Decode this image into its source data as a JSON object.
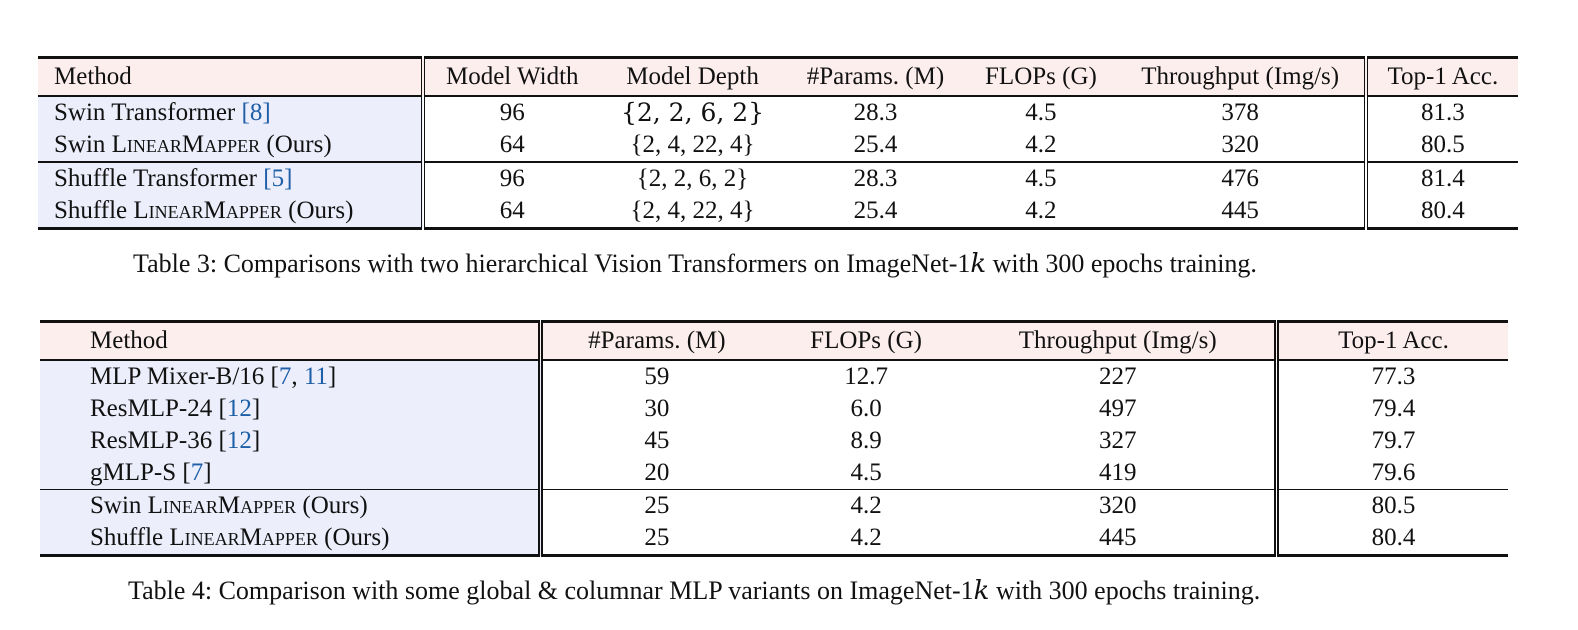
{
  "table3": {
    "headers": [
      "Method",
      "Model Width",
      "Model Depth",
      "#Params. (M)",
      "FLOPs (G)",
      "Throughput (Img/s)",
      "Top-1 Acc."
    ],
    "rows": [
      {
        "name": "Swin Transformer ",
        "ref": "[8]",
        "sc": "",
        "suffix": "",
        "width": "96",
        "depth": "{2, 2, 6, 2}",
        "params": "28.3",
        "flops": "4.5",
        "tput": "378",
        "acc": "81.3"
      },
      {
        "name": "Swin ",
        "ref": "",
        "sc": "LinearMapper",
        "suffix": " (Ours)",
        "width": "64",
        "depth": "{2, 4, 22, 4}",
        "params": "25.4",
        "flops": "4.2",
        "tput": "320",
        "acc": "80.5"
      },
      {
        "name": "Shuffle Transformer ",
        "ref": "[5]",
        "sc": "",
        "suffix": "",
        "width": "96",
        "depth": "{2, 2, 6, 2}",
        "params": "28.3",
        "flops": "4.5",
        "tput": "476",
        "acc": "81.4"
      },
      {
        "name": "Shuffle ",
        "ref": "",
        "sc": "LinearMapper",
        "suffix": " (Ours)",
        "width": "64",
        "depth": "{2, 4, 22, 4}",
        "params": "25.4",
        "flops": "4.2",
        "tput": "445",
        "acc": "80.4"
      }
    ],
    "caption_pre": "Table 3: Comparisons with two hierarchical Vision Transformers on ImageNet-1",
    "caption_k": "k",
    "caption_post": " with 300 epochs training."
  },
  "table4": {
    "headers": [
      "Method",
      "#Params. (M)",
      "FLOPs (G)",
      "Throughput (Img/s)",
      "Top-1 Acc."
    ],
    "rows": [
      {
        "name": "MLP Mixer-B/16 [",
        "ref1": "7",
        "mid": ", ",
        "ref2": "11",
        "end": "]",
        "sc": "",
        "suffix": "",
        "params": "59",
        "flops": "12.7",
        "tput": "227",
        "acc": "77.3"
      },
      {
        "name": "ResMLP-24 [",
        "ref1": "12",
        "mid": "",
        "ref2": "",
        "end": "]",
        "sc": "",
        "suffix": "",
        "params": "30",
        "flops": "6.0",
        "tput": "497",
        "acc": "79.4"
      },
      {
        "name": "ResMLP-36 [",
        "ref1": "12",
        "mid": "",
        "ref2": "",
        "end": "]",
        "sc": "",
        "suffix": "",
        "params": "45",
        "flops": "8.9",
        "tput": "327",
        "acc": "79.7"
      },
      {
        "name": "gMLP-S [",
        "ref1": "7",
        "mid": "",
        "ref2": "",
        "end": "]",
        "sc": "",
        "suffix": "",
        "params": "20",
        "flops": "4.5",
        "tput": "419",
        "acc": "79.6"
      },
      {
        "name": "Swin ",
        "ref1": "",
        "mid": "",
        "ref2": "",
        "end": "",
        "sc": "LinearMapper",
        "suffix": " (Ours)",
        "params": "25",
        "flops": "4.2",
        "tput": "320",
        "acc": "80.5"
      },
      {
        "name": "Shuffle ",
        "ref1": "",
        "mid": "",
        "ref2": "",
        "end": "",
        "sc": "LinearMapper",
        "suffix": " (Ours)",
        "params": "25",
        "flops": "4.2",
        "tput": "445",
        "acc": "80.4"
      }
    ],
    "caption_pre": "Table 4: Comparison with some global & columnar MLP variants on ImageNet-1",
    "caption_k": "k",
    "caption_post": " with 300 epochs training."
  }
}
